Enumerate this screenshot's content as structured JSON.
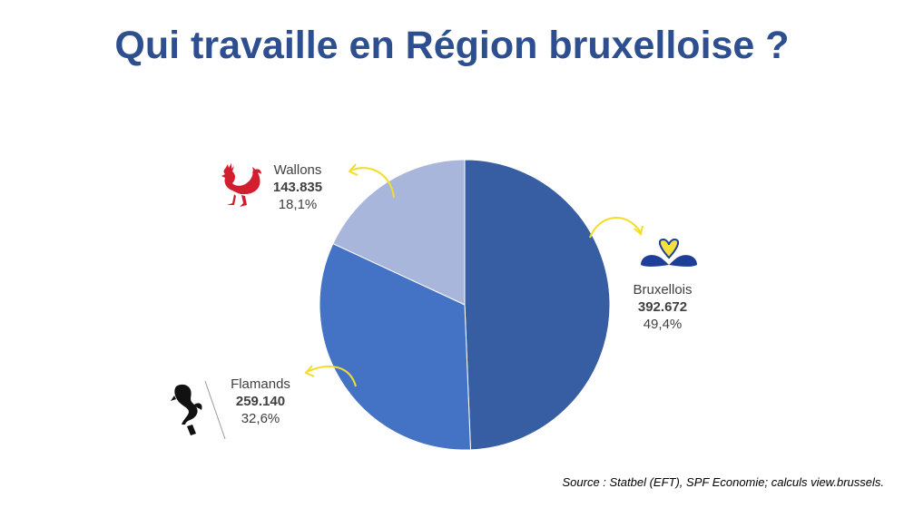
{
  "title": "Qui travaille en Région bruxelloise ?",
  "source": "Source : Statbel (EFT), SPF Economie; calculs view.brussels.",
  "colors": {
    "title": "#2e4f8f",
    "arrow": "#f2dd2a",
    "bruxellois": "#375ea3",
    "flamands": "#4472c4",
    "wallons": "#a9b6db"
  },
  "chart_data": {
    "type": "pie",
    "start": "top, clockwise",
    "slices": [
      {
        "name": "Bruxellois",
        "value": 392672,
        "value_label": "392.672",
        "percent": 49.4,
        "percent_label": "49,4%",
        "color": "#375ea3",
        "icon": "brussels-iris-icon"
      },
      {
        "name": "Flamands",
        "value": 259140,
        "value_label": "259.140",
        "percent": 32.6,
        "percent_label": "32,6%",
        "color": "#4472c4",
        "icon": "flemish-lion-icon"
      },
      {
        "name": "Wallons",
        "value": 143835,
        "value_label": "143.835",
        "percent": 18.1,
        "percent_label": "18,1%",
        "color": "#a9b6db",
        "icon": "walloon-rooster-icon"
      }
    ]
  }
}
